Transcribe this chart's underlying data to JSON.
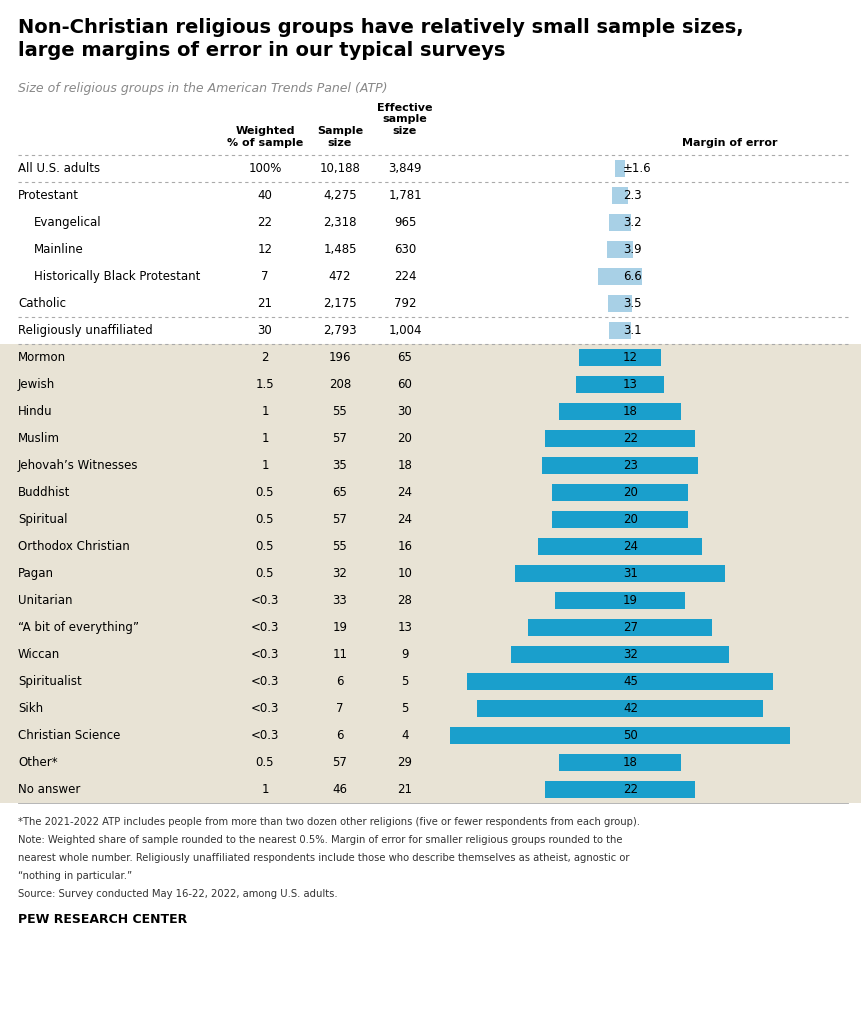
{
  "title": "Non-Christian religious groups have relatively small sample sizes,\nlarge margins of error in our typical surveys",
  "subtitle": "Size of religious groups in the American Trends Panel (ATP)",
  "rows": [
    {
      "label": "All U.S. adults",
      "weighted": "100%",
      "sample": "10,188",
      "effective": "3,849",
      "moe": 1.6,
      "moe_label": "±1.6",
      "bg": "#ffffff",
      "bar_color": "#a8d0e6",
      "indent": 0
    },
    {
      "label": "Protestant",
      "weighted": "40",
      "sample": "4,275",
      "effective": "1,781",
      "moe": 2.3,
      "moe_label": "2.3",
      "bg": "#ffffff",
      "bar_color": "#a8d0e6",
      "indent": 0
    },
    {
      "label": "Evangelical",
      "weighted": "22",
      "sample": "2,318",
      "effective": "965",
      "moe": 3.2,
      "moe_label": "3.2",
      "bg": "#ffffff",
      "bar_color": "#a8d0e6",
      "indent": 1
    },
    {
      "label": "Mainline",
      "weighted": "12",
      "sample": "1,485",
      "effective": "630",
      "moe": 3.9,
      "moe_label": "3.9",
      "bg": "#ffffff",
      "bar_color": "#a8d0e6",
      "indent": 1
    },
    {
      "label": "Historically Black Protestant",
      "weighted": "7",
      "sample": "472",
      "effective": "224",
      "moe": 6.6,
      "moe_label": "6.6",
      "bg": "#ffffff",
      "bar_color": "#a8d0e6",
      "indent": 1
    },
    {
      "label": "Catholic",
      "weighted": "21",
      "sample": "2,175",
      "effective": "792",
      "moe": 3.5,
      "moe_label": "3.5",
      "bg": "#ffffff",
      "bar_color": "#a8d0e6",
      "indent": 0
    },
    {
      "label": "Religiously unaffiliated",
      "weighted": "30",
      "sample": "2,793",
      "effective": "1,004",
      "moe": 3.1,
      "moe_label": "3.1",
      "bg": "#ffffff",
      "bar_color": "#a8d0e6",
      "indent": 0
    },
    {
      "label": "Mormon",
      "weighted": "2",
      "sample": "196",
      "effective": "65",
      "moe": 12,
      "moe_label": "12",
      "bg": "#e8e3d5",
      "bar_color": "#1a9fcc",
      "indent": 0
    },
    {
      "label": "Jewish",
      "weighted": "1.5",
      "sample": "208",
      "effective": "60",
      "moe": 13,
      "moe_label": "13",
      "bg": "#e8e3d5",
      "bar_color": "#1a9fcc",
      "indent": 0
    },
    {
      "label": "Hindu",
      "weighted": "1",
      "sample": "55",
      "effective": "30",
      "moe": 18,
      "moe_label": "18",
      "bg": "#e8e3d5",
      "bar_color": "#1a9fcc",
      "indent": 0
    },
    {
      "label": "Muslim",
      "weighted": "1",
      "sample": "57",
      "effective": "20",
      "moe": 22,
      "moe_label": "22",
      "bg": "#e8e3d5",
      "bar_color": "#1a9fcc",
      "indent": 0
    },
    {
      "label": "Jehovah’s Witnesses",
      "weighted": "1",
      "sample": "35",
      "effective": "18",
      "moe": 23,
      "moe_label": "23",
      "bg": "#e8e3d5",
      "bar_color": "#1a9fcc",
      "indent": 0
    },
    {
      "label": "Buddhist",
      "weighted": "0.5",
      "sample": "65",
      "effective": "24",
      "moe": 20,
      "moe_label": "20",
      "bg": "#e8e3d5",
      "bar_color": "#1a9fcc",
      "indent": 0
    },
    {
      "label": "Spiritual",
      "weighted": "0.5",
      "sample": "57",
      "effective": "24",
      "moe": 20,
      "moe_label": "20",
      "bg": "#e8e3d5",
      "bar_color": "#1a9fcc",
      "indent": 0
    },
    {
      "label": "Orthodox Christian",
      "weighted": "0.5",
      "sample": "55",
      "effective": "16",
      "moe": 24,
      "moe_label": "24",
      "bg": "#e8e3d5",
      "bar_color": "#1a9fcc",
      "indent": 0
    },
    {
      "label": "Pagan",
      "weighted": "0.5",
      "sample": "32",
      "effective": "10",
      "moe": 31,
      "moe_label": "31",
      "bg": "#e8e3d5",
      "bar_color": "#1a9fcc",
      "indent": 0
    },
    {
      "label": "Unitarian",
      "weighted": "<0.3",
      "sample": "33",
      "effective": "28",
      "moe": 19,
      "moe_label": "19",
      "bg": "#e8e3d5",
      "bar_color": "#1a9fcc",
      "indent": 0
    },
    {
      "label": "“A bit of everything”",
      "weighted": "<0.3",
      "sample": "19",
      "effective": "13",
      "moe": 27,
      "moe_label": "27",
      "bg": "#e8e3d5",
      "bar_color": "#1a9fcc",
      "indent": 0
    },
    {
      "label": "Wiccan",
      "weighted": "<0.3",
      "sample": "11",
      "effective": "9",
      "moe": 32,
      "moe_label": "32",
      "bg": "#e8e3d5",
      "bar_color": "#1a9fcc",
      "indent": 0
    },
    {
      "label": "Spiritualist",
      "weighted": "<0.3",
      "sample": "6",
      "effective": "5",
      "moe": 45,
      "moe_label": "45",
      "bg": "#e8e3d5",
      "bar_color": "#1a9fcc",
      "indent": 0
    },
    {
      "label": "Sikh",
      "weighted": "<0.3",
      "sample": "7",
      "effective": "5",
      "moe": 42,
      "moe_label": "42",
      "bg": "#e8e3d5",
      "bar_color": "#1a9fcc",
      "indent": 0
    },
    {
      "label": "Christian Science",
      "weighted": "<0.3",
      "sample": "6",
      "effective": "4",
      "moe": 50,
      "moe_label": "50",
      "bg": "#e8e3d5",
      "bar_color": "#1a9fcc",
      "indent": 0
    },
    {
      "label": "Other*",
      "weighted": "0.5",
      "sample": "57",
      "effective": "29",
      "moe": 18,
      "moe_label": "18",
      "bg": "#e8e3d5",
      "bar_color": "#1a9fcc",
      "indent": 0
    },
    {
      "label": "No answer",
      "weighted": "1",
      "sample": "46",
      "effective": "21",
      "moe": 22,
      "moe_label": "22",
      "bg": "#e8e3d5",
      "bar_color": "#1a9fcc",
      "indent": 0
    }
  ],
  "dotted_after": [
    0,
    5,
    6
  ],
  "footnotes": [
    "*The 2021-2022 ATP includes people from more than two dozen other religions (five or fewer respondents from each group).",
    "Note: Weighted share of sample rounded to the nearest 0.5%. Margin of error for smaller religious groups rounded to the",
    "nearest whole number. Religiously unaffiliated respondents include those who describe themselves as atheist, agnostic or",
    "“nothing in particular.”",
    "Source: Survey conducted May 16-22, 2022, among U.S. adults."
  ],
  "source_label": "PEW RESEARCH CENTER",
  "bar_max_moe": 50
}
